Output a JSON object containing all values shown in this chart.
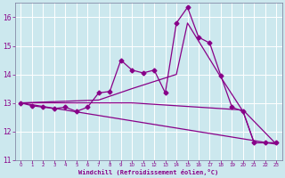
{
  "xlabel": "Windchill (Refroidissement éolien,°C)",
  "background_color": "#cce8ee",
  "line_color": "#880088",
  "grid_color": "#aaddcc",
  "xlim": [
    -0.5,
    23.5
  ],
  "ylim": [
    11.0,
    16.5
  ],
  "yticks": [
    11,
    12,
    13,
    14,
    15,
    16
  ],
  "xticks": [
    0,
    1,
    2,
    3,
    4,
    5,
    6,
    7,
    8,
    9,
    10,
    11,
    12,
    13,
    14,
    15,
    16,
    17,
    18,
    19,
    20,
    21,
    22,
    23
  ],
  "series_main_x": [
    0,
    1,
    2,
    3,
    4,
    5,
    6,
    7,
    8,
    9,
    10,
    11,
    12,
    13,
    14,
    15,
    16,
    17,
    18,
    19,
    20,
    21,
    22,
    23
  ],
  "series_main_y": [
    13.0,
    12.9,
    12.85,
    12.8,
    12.85,
    12.7,
    12.85,
    13.35,
    13.4,
    14.5,
    14.15,
    14.05,
    14.15,
    13.35,
    15.8,
    16.35,
    15.3,
    15.1,
    13.95,
    12.85,
    12.7,
    11.6,
    11.6,
    11.6
  ],
  "series_line1_x": [
    0,
    7,
    10,
    14,
    15,
    18,
    20,
    21,
    22,
    23
  ],
  "series_line1_y": [
    13.0,
    13.1,
    13.5,
    14.0,
    15.8,
    13.9,
    12.7,
    11.6,
    11.6,
    11.6
  ],
  "series_line2_x": [
    0,
    10,
    20,
    23
  ],
  "series_line2_y": [
    13.0,
    13.0,
    12.75,
    11.55
  ],
  "series_line3_x": [
    0,
    23
  ],
  "series_line3_y": [
    13.0,
    11.55
  ],
  "marker": "D",
  "markersize": 2.5,
  "linewidth": 0.9
}
